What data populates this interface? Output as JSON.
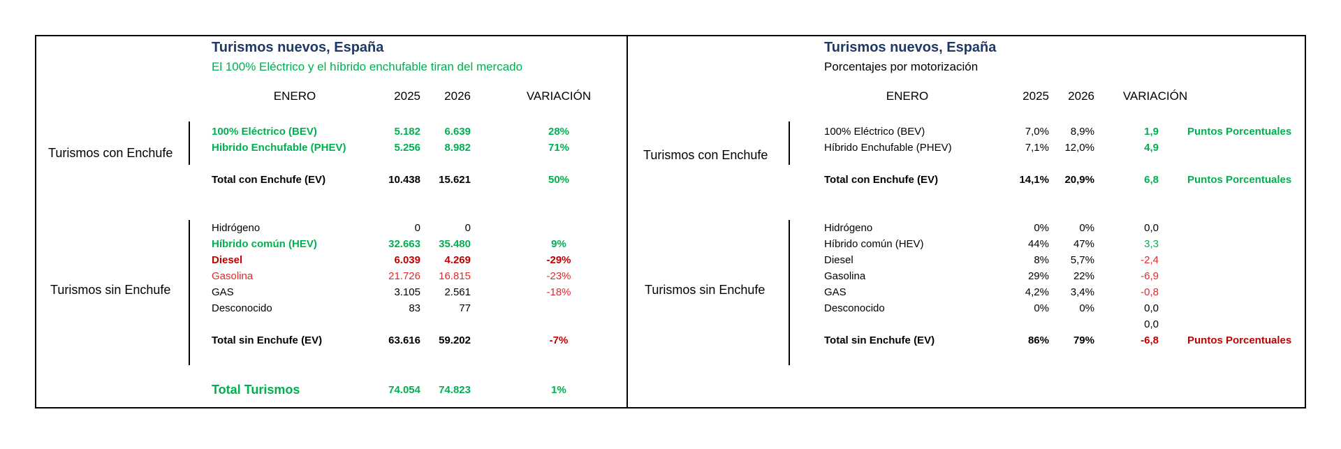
{
  "left": {
    "title": "Turismos nuevos, España",
    "subtitle": "El 100% Eléctrico y el híbrido enchufable tiran del mercado",
    "headers": {
      "period": "ENERO",
      "y2025": "2025",
      "y2026": "2026",
      "variation": "VARIACIÓN"
    },
    "group_plug": "Turismos con Enchufe",
    "group_noplug": "Turismos sin Enchufe",
    "rows": [
      {
        "label": "100% Eléctrico (BEV)",
        "v2025": "5.182",
        "v2026": "6.639",
        "var": "28%"
      },
      {
        "label": "Hibrido Enchufable (PHEV)",
        "v2025": "5.256",
        "v2026": "8.982",
        "var": "71%"
      },
      {
        "label": "Total con Enchufe  (EV)",
        "v2025": "10.438",
        "v2026": "15.621",
        "var": "50%"
      },
      {
        "label": "Hidrógeno",
        "v2025": "0",
        "v2026": "0",
        "var": ""
      },
      {
        "label": "Híbrido común  (HEV)",
        "v2025": "32.663",
        "v2026": "35.480",
        "var": "9%"
      },
      {
        "label": "Diesel",
        "v2025": "6.039",
        "v2026": "4.269",
        "var": "-29%"
      },
      {
        "label": "Gasolina",
        "v2025": "21.726",
        "v2026": "16.815",
        "var": "-23%"
      },
      {
        "label": "GAS",
        "v2025": "3.105",
        "v2026": "2.561",
        "var": "-18%"
      },
      {
        "label": "Desconocido",
        "v2025": "83",
        "v2026": "77",
        "var": ""
      },
      {
        "label": "Total sin Enchufe  (EV)",
        "v2025": "63.616",
        "v2026": "59.202",
        "var": "-7%"
      },
      {
        "label": "Total Turismos",
        "v2025": "74.054",
        "v2026": "74.823",
        "var": "1%"
      }
    ]
  },
  "right": {
    "title": "Turismos nuevos, España",
    "subtitle": "Porcentajes por motorización",
    "headers": {
      "period": "ENERO",
      "y2025": "2025",
      "y2026": "2026",
      "variation": "VARIACIÓN"
    },
    "group_plug": "Turismos con Enchufe",
    "group_noplug": "Turismos sin Enchufe",
    "rows": [
      {
        "label": "100% Eléctrico (BEV)",
        "v2025": "7,0%",
        "v2026": "8,9%",
        "var": "1,9",
        "note": "Puntos Porcentuales"
      },
      {
        "label": "Híbrido Enchufable (PHEV)",
        "v2025": "7,1%",
        "v2026": "12,0%",
        "var": "4,9",
        "note": ""
      },
      {
        "label": "Total con Enchufe  (EV)",
        "v2025": "14,1%",
        "v2026": "20,9%",
        "var": "6,8",
        "note": "Puntos Porcentuales"
      },
      {
        "label": "Hidrógeno",
        "v2025": "0%",
        "v2026": "0%",
        "var": "0,0",
        "note": ""
      },
      {
        "label": "Híbrido común   (HEV)",
        "v2025": "44%",
        "v2026": "47%",
        "var": "3,3",
        "note": ""
      },
      {
        "label": "Diesel",
        "v2025": "8%",
        "v2026": "5,7%",
        "var": "-2,4",
        "note": ""
      },
      {
        "label": "Gasolina",
        "v2025": "29%",
        "v2026": "22%",
        "var": "-6,9",
        "note": ""
      },
      {
        "label": "GAS",
        "v2025": "4,2%",
        "v2026": "3,4%",
        "var": "-0,8",
        "note": ""
      },
      {
        "label": "Desconocido",
        "v2025": "0%",
        "v2026": "0%",
        "var": "0,0",
        "note": ""
      },
      {
        "label": "",
        "v2025": "",
        "v2026": "",
        "var": "0,0",
        "note": ""
      },
      {
        "label": "Total sin Enchufe  (EV)",
        "v2025": "86%",
        "v2026": "79%",
        "var": "-6,8",
        "note": "Puntos Porcentuales"
      }
    ]
  }
}
